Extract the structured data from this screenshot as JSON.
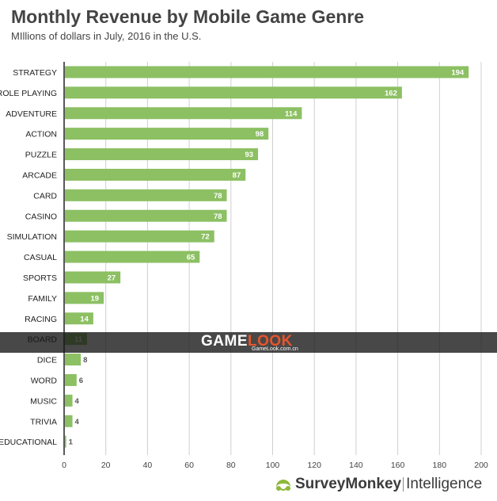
{
  "header": {
    "title": "Monthly Revenue by Mobile Game Genre",
    "subtitle": "MIllions of dollars in July, 2016 in the U.S."
  },
  "chart_data": {
    "type": "bar",
    "orientation": "horizontal",
    "title": "Monthly Revenue by Mobile Game Genre",
    "subtitle": "MIllions of dollars in July, 2016 in the U.S.",
    "categories": [
      "STRATEGY",
      "ROLE PLAYING",
      "ADVENTURE",
      "ACTION",
      "PUZZLE",
      "ARCADE",
      "CARD",
      "CASINO",
      "SIMULATION",
      "CASUAL",
      "SPORTS",
      "FAMILY",
      "RACING",
      "BOARD",
      "DICE",
      "WORD",
      "MUSIC",
      "TRIVIA",
      "EDUCATIONAL"
    ],
    "values": [
      194,
      162,
      114,
      98,
      93,
      87,
      78,
      78,
      72,
      65,
      27,
      19,
      14,
      11,
      8,
      6,
      4,
      4,
      1
    ],
    "xlim": [
      0,
      200
    ],
    "xticks": [
      0,
      20,
      40,
      60,
      80,
      100,
      120,
      140,
      160,
      180,
      200
    ],
    "grid": true,
    "xlabel": "",
    "ylabel": "",
    "bar_color": "#8cc063",
    "grid_color": "#cfcfcf"
  },
  "watermark": {
    "logo_part1": "GAME",
    "logo_part2": "LOOK",
    "url": "GameLook.com.cn",
    "accent_color": "#e8552a"
  },
  "footer": {
    "brand": "SurveyMonkey",
    "product": "Intelligence",
    "icon": "surveymonkey-logo-icon"
  }
}
